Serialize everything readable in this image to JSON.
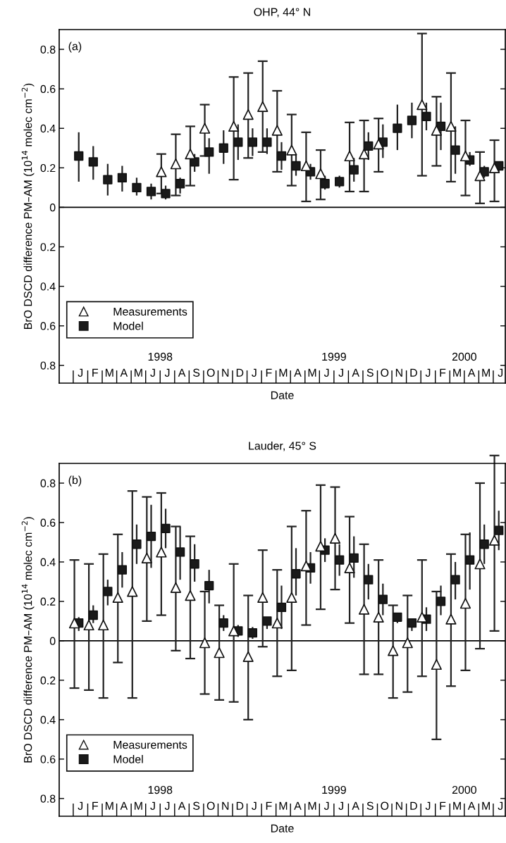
{
  "chart_data": [
    {
      "type": "scatter",
      "title": "OHP, 44° N",
      "xlabel": "Date",
      "ylabel": "BrO DSCD difference PM–AM (10$^{14}$ molec cm$^{−2}$)",
      "annotations": [
        "(a)",
        "1998",
        "1999",
        "2000"
      ],
      "categories": [
        "J",
        "F",
        "M",
        "A",
        "M",
        "J",
        "J",
        "A",
        "S",
        "O",
        "N",
        "D",
        "J",
        "F",
        "M",
        "A",
        "M",
        "J",
        "J",
        "A",
        "S",
        "O",
        "N",
        "D",
        "J",
        "F",
        "M",
        "A",
        "M",
        "J"
      ],
      "ylim": [
        -0.89,
        0.9
      ],
      "yticks": [
        {
          "value": -0.8,
          "label": "0.8"
        },
        {
          "value": -0.6,
          "label": "0.6"
        },
        {
          "value": -0.4,
          "label": "0.4"
        },
        {
          "value": -0.2,
          "label": "0.2"
        },
        0,
        0.2,
        0.4,
        0.6,
        0.8
      ],
      "ref_lines": [
        {
          "axis": "y",
          "value": 0,
          "color": "#000000"
        }
      ],
      "legend": "bottom left",
      "series": [
        {
          "name": "Measurements",
          "marker": "triangle",
          "color": "#ffffff",
          "values": [
            null,
            null,
            null,
            null,
            null,
            null,
            0.18,
            0.22,
            0.27,
            0.4,
            null,
            0.41,
            0.47,
            0.51,
            0.39,
            0.29,
            0.21,
            0.17,
            null,
            0.26,
            0.27,
            0.32,
            null,
            null,
            0.52,
            0.39,
            0.41,
            0.26,
            0.16,
            0.2
          ],
          "errors": [
            null,
            null,
            null,
            null,
            null,
            null,
            [
              0.07,
              0.27
            ],
            [
              0.06,
              0.37
            ],
            [
              0.11,
              0.41
            ],
            [
              0.26,
              0.52
            ],
            null,
            [
              0.14,
              0.66
            ],
            [
              0.25,
              0.68
            ],
            [
              0.28,
              0.74
            ],
            [
              0.18,
              0.59
            ],
            [
              0.11,
              0.47
            ],
            [
              0.03,
              0.38
            ],
            [
              0.04,
              0.29
            ],
            null,
            [
              0.08,
              0.43
            ],
            [
              0.08,
              0.44
            ],
            [
              0.18,
              0.45
            ],
            null,
            null,
            [
              0.16,
              0.88
            ],
            [
              0.21,
              0.56
            ],
            [
              0.13,
              0.68
            ],
            [
              0.06,
              0.44
            ],
            [
              0.02,
              0.28
            ],
            [
              0.03,
              0.34
            ]
          ]
        },
        {
          "name": "Model",
          "marker": "square",
          "color": "#1a1a1a",
          "values": [
            0.26,
            0.23,
            0.14,
            0.15,
            0.1,
            0.08,
            0.07,
            0.12,
            0.23,
            0.28,
            0.3,
            0.33,
            0.33,
            0.33,
            0.26,
            0.21,
            0.18,
            0.12,
            0.13,
            0.19,
            0.31,
            0.33,
            0.4,
            0.44,
            0.46,
            0.41,
            0.29,
            0.24,
            0.18,
            0.21
          ],
          "errors": [
            [
              0.13,
              0.38
            ],
            [
              0.14,
              0.31
            ],
            [
              0.06,
              0.22
            ],
            [
              0.08,
              0.21
            ],
            [
              0.06,
              0.15
            ],
            [
              0.04,
              0.12
            ],
            [
              0.04,
              0.11
            ],
            [
              0.07,
              0.15
            ],
            [
              0.18,
              0.27
            ],
            [
              0.17,
              0.35
            ],
            [
              0.22,
              0.39
            ],
            [
              0.24,
              0.42
            ],
            [
              0.26,
              0.4
            ],
            [
              0.27,
              0.4
            ],
            [
              0.19,
              0.33
            ],
            [
              0.16,
              0.27
            ],
            [
              0.14,
              0.22
            ],
            [
              0.09,
              0.16
            ],
            [
              0.1,
              0.16
            ],
            [
              0.13,
              0.25
            ],
            [
              0.24,
              0.38
            ],
            [
              0.25,
              0.42
            ],
            [
              0.29,
              0.52
            ],
            [
              0.35,
              0.53
            ],
            [
              0.39,
              0.53
            ],
            [
              0.29,
              0.53
            ],
            [
              0.17,
              0.41
            ],
            [
              0.21,
              0.28
            ],
            [
              0.15,
              0.21
            ],
            [
              0.18,
              0.23
            ]
          ]
        }
      ]
    },
    {
      "type": "scatter",
      "title": "Lauder, 45° S",
      "xlabel": "Date",
      "ylabel": "BrO DSCD difference PM–AM (10$^{14}$ molec cm$^{−2}$)",
      "annotations": [
        "(b)",
        "1998",
        "1999",
        "2000"
      ],
      "categories": [
        "J",
        "F",
        "M",
        "A",
        "M",
        "J",
        "J",
        "A",
        "S",
        "O",
        "N",
        "D",
        "J",
        "F",
        "M",
        "A",
        "M",
        "J",
        "J",
        "A",
        "S",
        "O",
        "N",
        "D",
        "J",
        "F",
        "M",
        "A",
        "M",
        "J"
      ],
      "ylim": [
        -0.89,
        0.9
      ],
      "yticks": [
        {
          "value": -0.8,
          "label": "0.8"
        },
        {
          "value": -0.6,
          "label": "0.6"
        },
        {
          "value": -0.4,
          "label": "0.4"
        },
        {
          "value": -0.2,
          "label": "0.2"
        },
        0,
        0.2,
        0.4,
        0.6,
        0.8
      ],
      "ref_lines": [
        {
          "axis": "y",
          "value": 0,
          "color": "#000000"
        }
      ],
      "legend": "bottom left",
      "series": [
        {
          "name": "Measurements",
          "marker": "triangle",
          "color": "#ffffff",
          "values": [
            0.09,
            0.08,
            0.08,
            0.22,
            0.25,
            0.42,
            0.45,
            0.27,
            0.23,
            -0.01,
            -0.06,
            0.05,
            -0.08,
            0.22,
            0.09,
            0.22,
            0.38,
            0.48,
            0.52,
            0.37,
            0.16,
            0.12,
            -0.05,
            -0.01,
            0.12,
            -0.12,
            0.11,
            0.19,
            0.39,
            0.51
          ],
          "errors": [
            [
              -0.24,
              0.41
            ],
            [
              -0.25,
              0.39
            ],
            [
              -0.29,
              0.44
            ],
            [
              -0.11,
              0.54
            ],
            [
              -0.29,
              0.76
            ],
            [
              0.1,
              0.73
            ],
            [
              0.13,
              0.75
            ],
            [
              -0.05,
              0.58
            ],
            [
              -0.09,
              0.53
            ],
            [
              -0.27,
              0.25
            ],
            [
              -0.3,
              0.18
            ],
            [
              -0.31,
              0.39
            ],
            [
              -0.4,
              0.23
            ],
            [
              -0.03,
              0.46
            ],
            [
              -0.18,
              0.36
            ],
            [
              -0.15,
              0.58
            ],
            [
              0.08,
              0.66
            ],
            [
              0.16,
              0.79
            ],
            [
              0.26,
              0.78
            ],
            [
              0.09,
              0.63
            ],
            [
              -0.17,
              0.49
            ],
            [
              -0.17,
              0.41
            ],
            [
              -0.29,
              0.18
            ],
            [
              -0.26,
              0.23
            ],
            [
              -0.18,
              0.41
            ],
            [
              -0.5,
              0.25
            ],
            [
              -0.23,
              0.44
            ],
            [
              -0.15,
              0.54
            ],
            [
              -0.04,
              0.8
            ],
            [
              0.05,
              0.94
            ]
          ]
        },
        {
          "name": "Model",
          "marker": "square",
          "color": "#1a1a1a",
          "values": [
            0.09,
            0.13,
            0.25,
            0.36,
            0.49,
            0.53,
            0.57,
            0.45,
            0.39,
            0.28,
            0.09,
            0.05,
            0.04,
            0.1,
            0.17,
            0.34,
            0.37,
            0.46,
            0.41,
            0.42,
            0.31,
            0.21,
            0.12,
            0.09,
            0.11,
            0.2,
            0.31,
            0.41,
            0.49,
            0.56
          ],
          "errors": [
            [
              0.05,
              0.12
            ],
            [
              0.09,
              0.18
            ],
            [
              0.18,
              0.31
            ],
            [
              0.27,
              0.45
            ],
            [
              0.39,
              0.59
            ],
            [
              0.37,
              0.69
            ],
            [
              0.47,
              0.67
            ],
            [
              0.31,
              0.58
            ],
            [
              0.3,
              0.49
            ],
            [
              0.19,
              0.36
            ],
            [
              0.05,
              0.13
            ],
            [
              0.02,
              0.08
            ],
            [
              0.01,
              0.07
            ],
            [
              0.06,
              0.12
            ],
            [
              0.06,
              0.28
            ],
            [
              0.23,
              0.47
            ],
            [
              0.29,
              0.45
            ],
            [
              0.4,
              0.52
            ],
            [
              0.33,
              0.49
            ],
            [
              0.32,
              0.53
            ],
            [
              0.21,
              0.39
            ],
            [
              0.13,
              0.29
            ],
            [
              0.09,
              0.14
            ],
            [
              0.05,
              0.11
            ],
            [
              0.05,
              0.17
            ],
            [
              0.13,
              0.28
            ],
            [
              0.21,
              0.4
            ],
            [
              0.26,
              0.55
            ],
            [
              0.39,
              0.59
            ],
            [
              0.46,
              0.66
            ]
          ]
        }
      ]
    }
  ]
}
